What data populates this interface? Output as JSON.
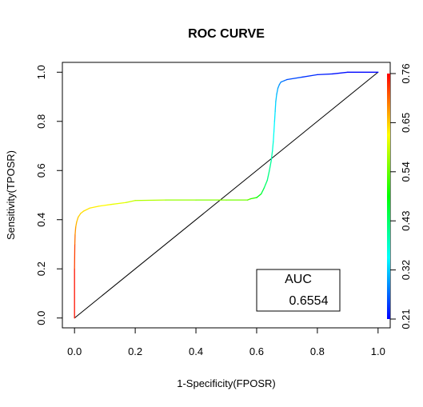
{
  "chart_data": {
    "type": "line",
    "title": "ROC CURVE",
    "xlabel": "1-Specificity(FPOSR)",
    "ylabel": "Sensitivity(TPOSR)",
    "xlim": [
      -0.04,
      1.04
    ],
    "ylim": [
      -0.04,
      1.04
    ],
    "x_ticks": [
      0,
      0.2,
      0.4,
      0.6,
      0.8,
      1
    ],
    "x_tick_labels": [
      "0.0",
      "0.2",
      "0.4",
      "0.6",
      "0.8",
      "1.0"
    ],
    "y_ticks": [
      0,
      0.2,
      0.4,
      0.6,
      0.8,
      1
    ],
    "y_tick_labels": [
      "0.0",
      "0.2",
      "0.4",
      "0.6",
      "0.8",
      "1.0"
    ],
    "grid": false,
    "series": [
      {
        "x": [
          0,
          0,
          0.001,
          0.002,
          0.004,
          0.007,
          0.012,
          0.02,
          0.03,
          0.05,
          0.08,
          0.12,
          0.17,
          0.2,
          0.3,
          0.4,
          0.5,
          0.57,
          0.58,
          0.6,
          0.615,
          0.625,
          0.635,
          0.642,
          0.648,
          0.652,
          0.655,
          0.657,
          0.659,
          0.661,
          0.663,
          0.666,
          0.67,
          0.675,
          0.68,
          0.69,
          0.7,
          0.75,
          0.8,
          0.85,
          0.9,
          1.0
        ],
        "y": [
          0,
          0.2,
          0.3,
          0.34,
          0.37,
          0.39,
          0.41,
          0.425,
          0.435,
          0.447,
          0.455,
          0.462,
          0.47,
          0.478,
          0.48,
          0.48,
          0.48,
          0.48,
          0.485,
          0.49,
          0.505,
          0.53,
          0.56,
          0.6,
          0.64,
          0.68,
          0.72,
          0.76,
          0.8,
          0.84,
          0.88,
          0.91,
          0.935,
          0.95,
          0.96,
          0.965,
          0.97,
          0.98,
          0.99,
          0.993,
          1.0,
          1.0
        ],
        "color_values": [
          0.76,
          0.74,
          0.71,
          0.69,
          0.67,
          0.66,
          0.65,
          0.645,
          0.64,
          0.635,
          0.63,
          0.62,
          0.6,
          0.59,
          0.57,
          0.56,
          0.55,
          0.545,
          0.52,
          0.5,
          0.46,
          0.44,
          0.42,
          0.41,
          0.4,
          0.38,
          0.36,
          0.35,
          0.34,
          0.33,
          0.32,
          0.31,
          0.3,
          0.29,
          0.28,
          0.27,
          0.26,
          0.24,
          0.23,
          0.22,
          0.215,
          0.21
        ]
      }
    ],
    "reference_line": {
      "x": [
        0,
        1
      ],
      "y": [
        0,
        1
      ],
      "color": "#000000"
    },
    "colorbar": {
      "range": [
        0.21,
        0.76
      ],
      "ticks": [
        0.21,
        0.32,
        0.43,
        0.54,
        0.65,
        0.76
      ],
      "tick_labels": [
        "0.21",
        "0.32",
        "0.43",
        "0.54",
        "0.65",
        "0.76"
      ],
      "colors": [
        "#0000ff",
        "#00ffff",
        "#00ff00",
        "#ffff00",
        "#ff0000"
      ]
    },
    "annotation": {
      "label": "AUC",
      "value": "0.6554"
    }
  }
}
